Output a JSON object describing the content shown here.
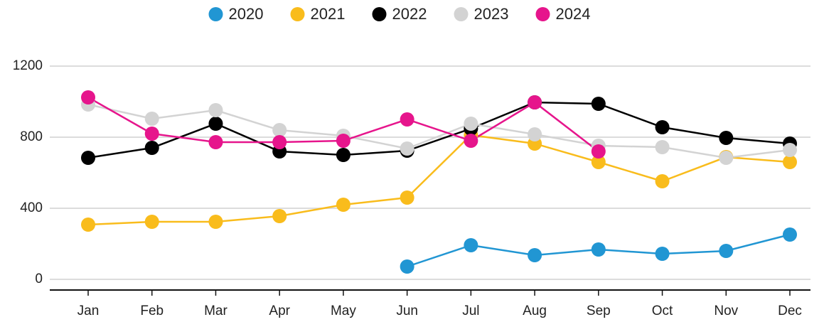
{
  "chart_data": {
    "type": "line",
    "categories": [
      "Jan",
      "Feb",
      "Mar",
      "Apr",
      "May",
      "Jun",
      "Jul",
      "Aug",
      "Sep",
      "Oct",
      "Nov",
      "Dec"
    ],
    "series": [
      {
        "name": "2020",
        "color": "#2196d3",
        "values": [
          null,
          null,
          null,
          null,
          null,
          72,
          192,
          136,
          168,
          144,
          160,
          252
        ]
      },
      {
        "name": "2021",
        "color": "#f9bc1c",
        "values": [
          308,
          324,
          324,
          356,
          420,
          460,
          812,
          764,
          660,
          552,
          688,
          660
        ]
      },
      {
        "name": "2022",
        "color": "#000000",
        "values": [
          684,
          740,
          876,
          720,
          700,
          724,
          848,
          996,
          988,
          856,
          796,
          764
        ]
      },
      {
        "name": "2023",
        "color": "#d3d3d3",
        "values": [
          984,
          904,
          952,
          840,
          808,
          736,
          876,
          816,
          752,
          744,
          684,
          728
        ]
      },
      {
        "name": "2024",
        "color": "#e6158c",
        "values": [
          1024,
          820,
          772,
          772,
          780,
          900,
          780,
          996,
          720,
          null,
          null,
          null
        ]
      }
    ],
    "ylim": [
      -60,
      1200
    ],
    "yticks": [
      0,
      400,
      800,
      1200
    ],
    "grid": true,
    "legend": "top"
  }
}
